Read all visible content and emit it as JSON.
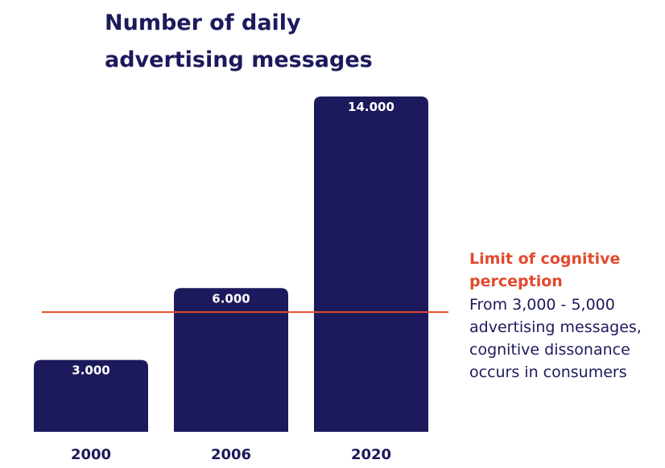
{
  "chart_data": {
    "type": "bar",
    "title": "Number of daily advertising messages",
    "categories": [
      "2000",
      "2006",
      "2020"
    ],
    "values": [
      3000,
      6000,
      14000
    ],
    "data_labels": [
      "3.000",
      "6.000",
      "14.000"
    ],
    "ylim": [
      0,
      14000
    ],
    "grid": false,
    "reference_line": {
      "value": 5000,
      "label": "Limit of cognitive perception",
      "description": "From 3,000 - 5,000 advertising messages, cognitive dissonance occurs in consumers"
    }
  },
  "colors": {
    "bar": "#1c1a5c",
    "title": "#1c1a5c",
    "reference_line": "#e24a2e",
    "data_label": "#ffffff"
  }
}
